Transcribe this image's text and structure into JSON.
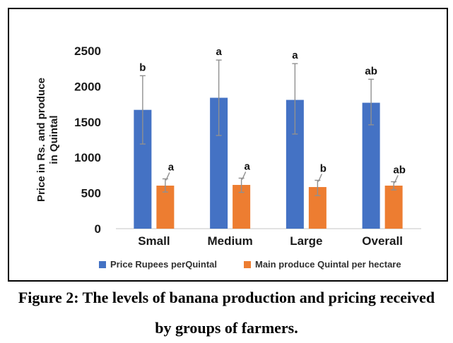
{
  "figure": {
    "caption_line1": "Figure 2: The levels of banana production and pricing received",
    "caption_line2": "by groups of farmers."
  },
  "chart_data": {
    "type": "bar",
    "title": "",
    "categories": [
      "Small",
      "Medium",
      "Large",
      "Overall"
    ],
    "series": [
      {
        "name": "Price Rupees perQuintal",
        "color": "#4472C4",
        "values": [
          1670,
          1840,
          1810,
          1770
        ],
        "error_low": [
          1190,
          1310,
          1330,
          1460
        ],
        "error_high": [
          2150,
          2370,
          2320,
          2100
        ],
        "letters": [
          "b",
          "a",
          "a",
          "ab"
        ]
      },
      {
        "name": "Main produce Quintal per hectare",
        "color": "#ED7D31",
        "values": [
          605,
          615,
          585,
          605
        ],
        "error_low": [
          515,
          510,
          465,
          545
        ],
        "error_high": [
          700,
          710,
          680,
          660
        ],
        "letters": [
          "a",
          "a",
          "b",
          "ab"
        ]
      }
    ],
    "xlabel": "",
    "ylabel_line1": "Price in Rs. and produce",
    "ylabel_line2": "in Quintal",
    "ylim": [
      0,
      2500
    ],
    "ytick_step": 500,
    "yticks": [
      "0",
      "500",
      "1000",
      "1500",
      "2000",
      "2500"
    ],
    "grid": false,
    "legend_position": "bottom"
  },
  "colors": {
    "axis_line": "#d9d9d9",
    "error_bar": "#909090",
    "border": "#000000",
    "text": "#1a1a1a"
  }
}
